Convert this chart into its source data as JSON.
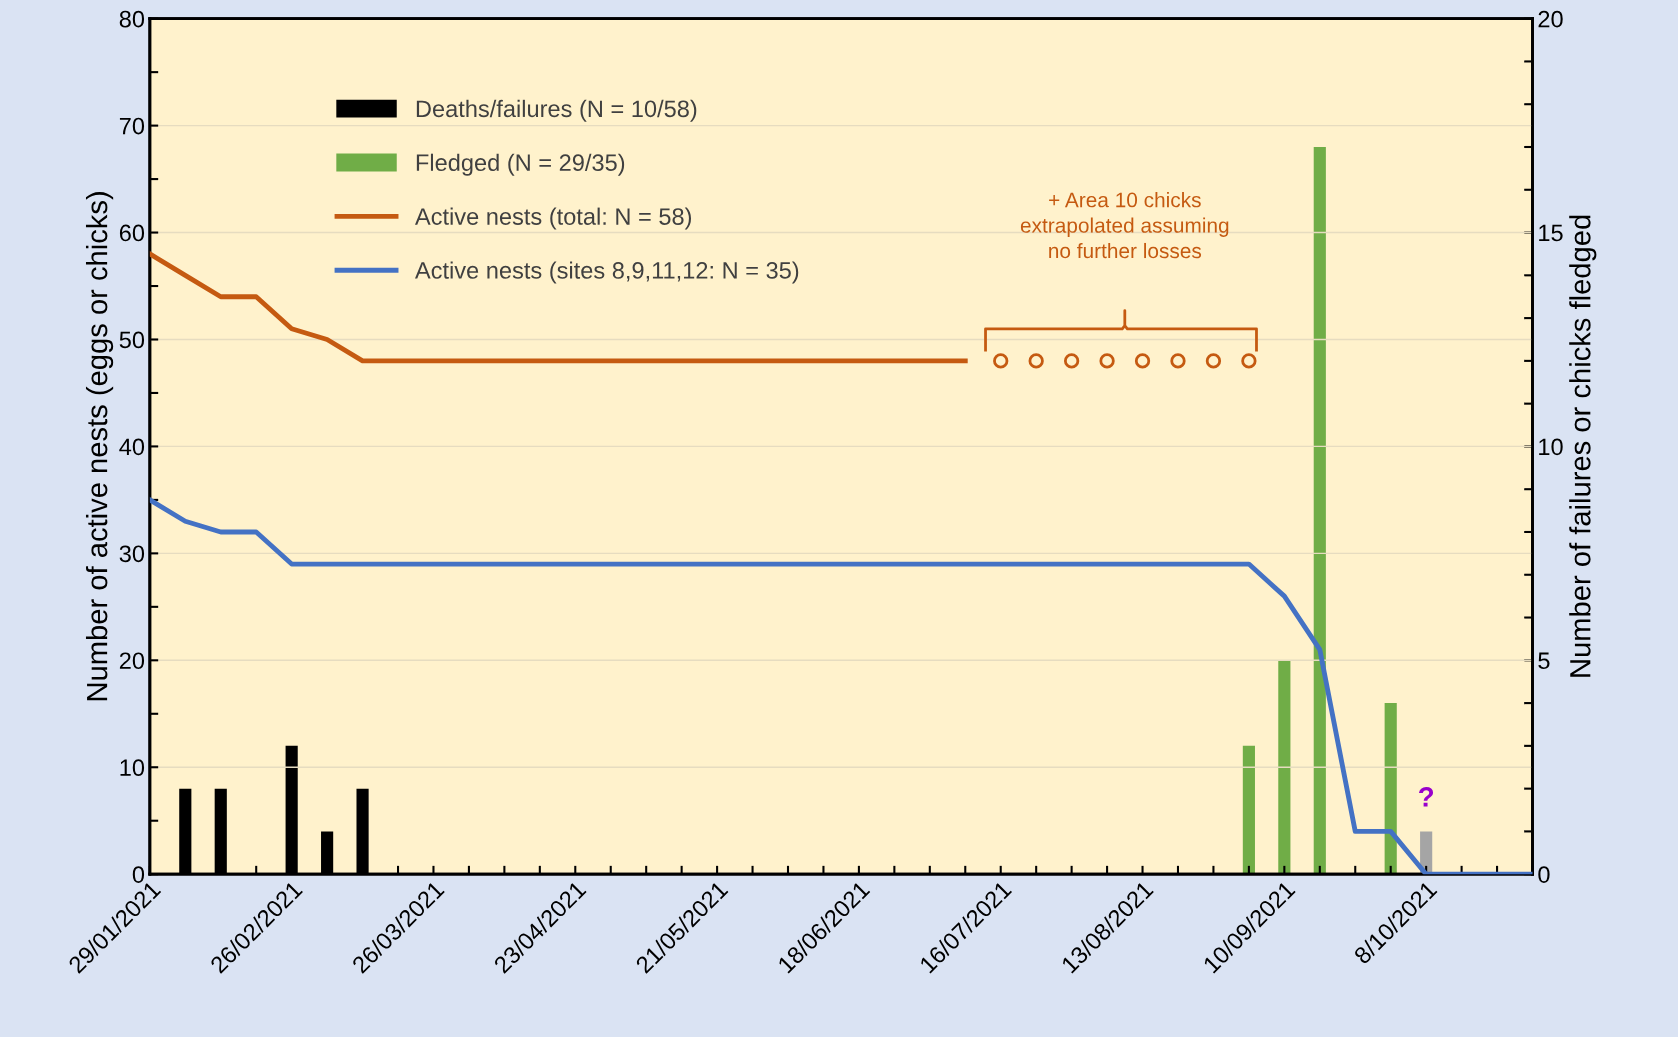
{
  "chart_data": {
    "type": "line",
    "ylabel": "Number of active nests (eggs or chicks)",
    "y2label": "Number of failures or chicks fledged",
    "xlim": [
      "2021-01-29",
      "2021-10-29"
    ],
    "xticks": [
      {
        "value": "2021-01-29",
        "label": "29/01/2021"
      },
      {
        "value": "2021-02-05",
        "label": null
      },
      {
        "value": "2021-02-12",
        "label": null
      },
      {
        "value": "2021-02-19",
        "label": null
      },
      {
        "value": "2021-02-26",
        "label": "26/02/2021"
      },
      {
        "value": "2021-03-05",
        "label": null
      },
      {
        "value": "2021-03-12",
        "label": null
      },
      {
        "value": "2021-03-19",
        "label": null
      },
      {
        "value": "2021-03-26",
        "label": "26/03/2021"
      },
      {
        "value": "2021-04-02",
        "label": null
      },
      {
        "value": "2021-04-09",
        "label": null
      },
      {
        "value": "2021-04-16",
        "label": null
      },
      {
        "value": "2021-04-23",
        "label": "23/04/2021"
      },
      {
        "value": "2021-04-30",
        "label": null
      },
      {
        "value": "2021-05-07",
        "label": null
      },
      {
        "value": "2021-05-14",
        "label": null
      },
      {
        "value": "2021-05-21",
        "label": "21/05/2021"
      },
      {
        "value": "2021-05-28",
        "label": null
      },
      {
        "value": "2021-06-04",
        "label": null
      },
      {
        "value": "2021-06-11",
        "label": null
      },
      {
        "value": "2021-06-18",
        "label": "18/06/2021"
      },
      {
        "value": "2021-06-25",
        "label": null
      },
      {
        "value": "2021-07-02",
        "label": null
      },
      {
        "value": "2021-07-09",
        "label": null
      },
      {
        "value": "2021-07-16",
        "label": "16/07/2021"
      },
      {
        "value": "2021-07-23",
        "label": null
      },
      {
        "value": "2021-07-30",
        "label": null
      },
      {
        "value": "2021-08-06",
        "label": null
      },
      {
        "value": "2021-08-13",
        "label": "13/08/2021"
      },
      {
        "value": "2021-08-20",
        "label": null
      },
      {
        "value": "2021-08-27",
        "label": null
      },
      {
        "value": "2021-09-03",
        "label": null
      },
      {
        "value": "2021-09-10",
        "label": "10/09/2021"
      },
      {
        "value": "2021-09-17",
        "label": null
      },
      {
        "value": "2021-09-24",
        "label": null
      },
      {
        "value": "2021-10-01",
        "label": null
      },
      {
        "value": "2021-10-08",
        "label": "8/10/2021"
      },
      {
        "value": "2021-10-15",
        "label": null
      },
      {
        "value": "2021-10-22",
        "label": null
      },
      {
        "value": "2021-10-29",
        "label": null
      }
    ],
    "ylim": [
      0,
      80
    ],
    "yticks": [
      0,
      {
        "value": 5,
        "label": null
      },
      10,
      {
        "value": 15,
        "label": null
      },
      20,
      {
        "value": 25,
        "label": null
      },
      30,
      {
        "value": 35,
        "label": null
      },
      40,
      {
        "value": 45,
        "label": null
      },
      50,
      {
        "value": 55,
        "label": null
      },
      60,
      {
        "value": 65,
        "label": null
      },
      70,
      {
        "value": 75,
        "label": null
      },
      80
    ],
    "y2lim": [
      0,
      20
    ],
    "y2ticks": [
      0,
      {
        "value": 1,
        "label": null
      },
      {
        "value": 2,
        "label": null
      },
      {
        "value": 3,
        "label": null
      },
      {
        "value": 4,
        "label": null
      },
      5,
      {
        "value": 6,
        "label": null
      },
      {
        "value": 7,
        "label": null
      },
      {
        "value": 8,
        "label": null
      },
      {
        "value": 9,
        "label": null
      },
      10,
      {
        "value": 11,
        "label": null
      },
      {
        "value": 12,
        "label": null
      },
      {
        "value": 13,
        "label": null
      },
      {
        "value": 14,
        "label": null
      },
      15,
      {
        "value": 16,
        "label": null
      },
      {
        "value": 17,
        "label": null
      },
      {
        "value": 18,
        "label": null
      },
      {
        "value": 19,
        "label": null
      },
      20
    ],
    "grid": "y",
    "legend": "top left",
    "series": [
      {
        "type": "bar",
        "axis": "y2",
        "name": "Deaths/failures (N = 10/58)",
        "color": "#000000",
        "x": [
          "2021-02-05",
          "2021-02-12",
          "2021-02-26",
          "2021-03-05",
          "2021-03-12"
        ],
        "values": [
          2,
          2,
          3,
          1,
          2
        ]
      },
      {
        "type": "bar",
        "axis": "y2",
        "name": "Fledged (N = 29/35)",
        "color": "#70ad47",
        "x": [
          "2021-09-03",
          "2021-09-10",
          "2021-09-17",
          "2021-10-01"
        ],
        "values": [
          3,
          5,
          17,
          4
        ]
      },
      {
        "name": "Active nests (total: N = 58)",
        "color": "#c55a11",
        "x": [
          "2021-01-29",
          "2021-02-05",
          "2021-02-12",
          "2021-02-19",
          "2021-02-26",
          "2021-03-05",
          "2021-03-12",
          "2021-07-09"
        ],
        "values": [
          58,
          56,
          54,
          54,
          51,
          50,
          48,
          48
        ]
      },
      {
        "name": "Active nests (sites 8,9,11,12: N = 35)",
        "color": "#4472c4",
        "x": [
          "2021-01-29",
          "2021-02-05",
          "2021-02-12",
          "2021-02-19",
          "2021-02-26",
          "2021-09-03",
          "2021-09-10",
          "2021-09-17",
          "2021-09-24",
          "2021-10-01",
          "2021-10-08",
          "2021-10-29"
        ],
        "values": [
          35,
          33,
          32,
          32,
          29,
          29,
          26,
          21,
          4,
          4,
          0,
          0
        ]
      },
      {
        "type": "bar",
        "axis": "y2",
        "color": "#a5a5a5",
        "x": [
          "2021-10-08"
        ],
        "values": [
          1
        ]
      },
      {
        "type": "scatter",
        "marker": "circle",
        "color": "#c55a11",
        "x": [
          "2021-07-16",
          "2021-07-23",
          "2021-07-30",
          "2021-08-06",
          "2021-08-13",
          "2021-08-20",
          "2021-08-27",
          "2021-09-03"
        ],
        "values": [
          48,
          48,
          48,
          48,
          48,
          48,
          48,
          48
        ]
      }
    ],
    "annotations": [
      "+ Area 10 chicks\nextrapolated assuming\nno further losses",
      "?"
    ]
  }
}
